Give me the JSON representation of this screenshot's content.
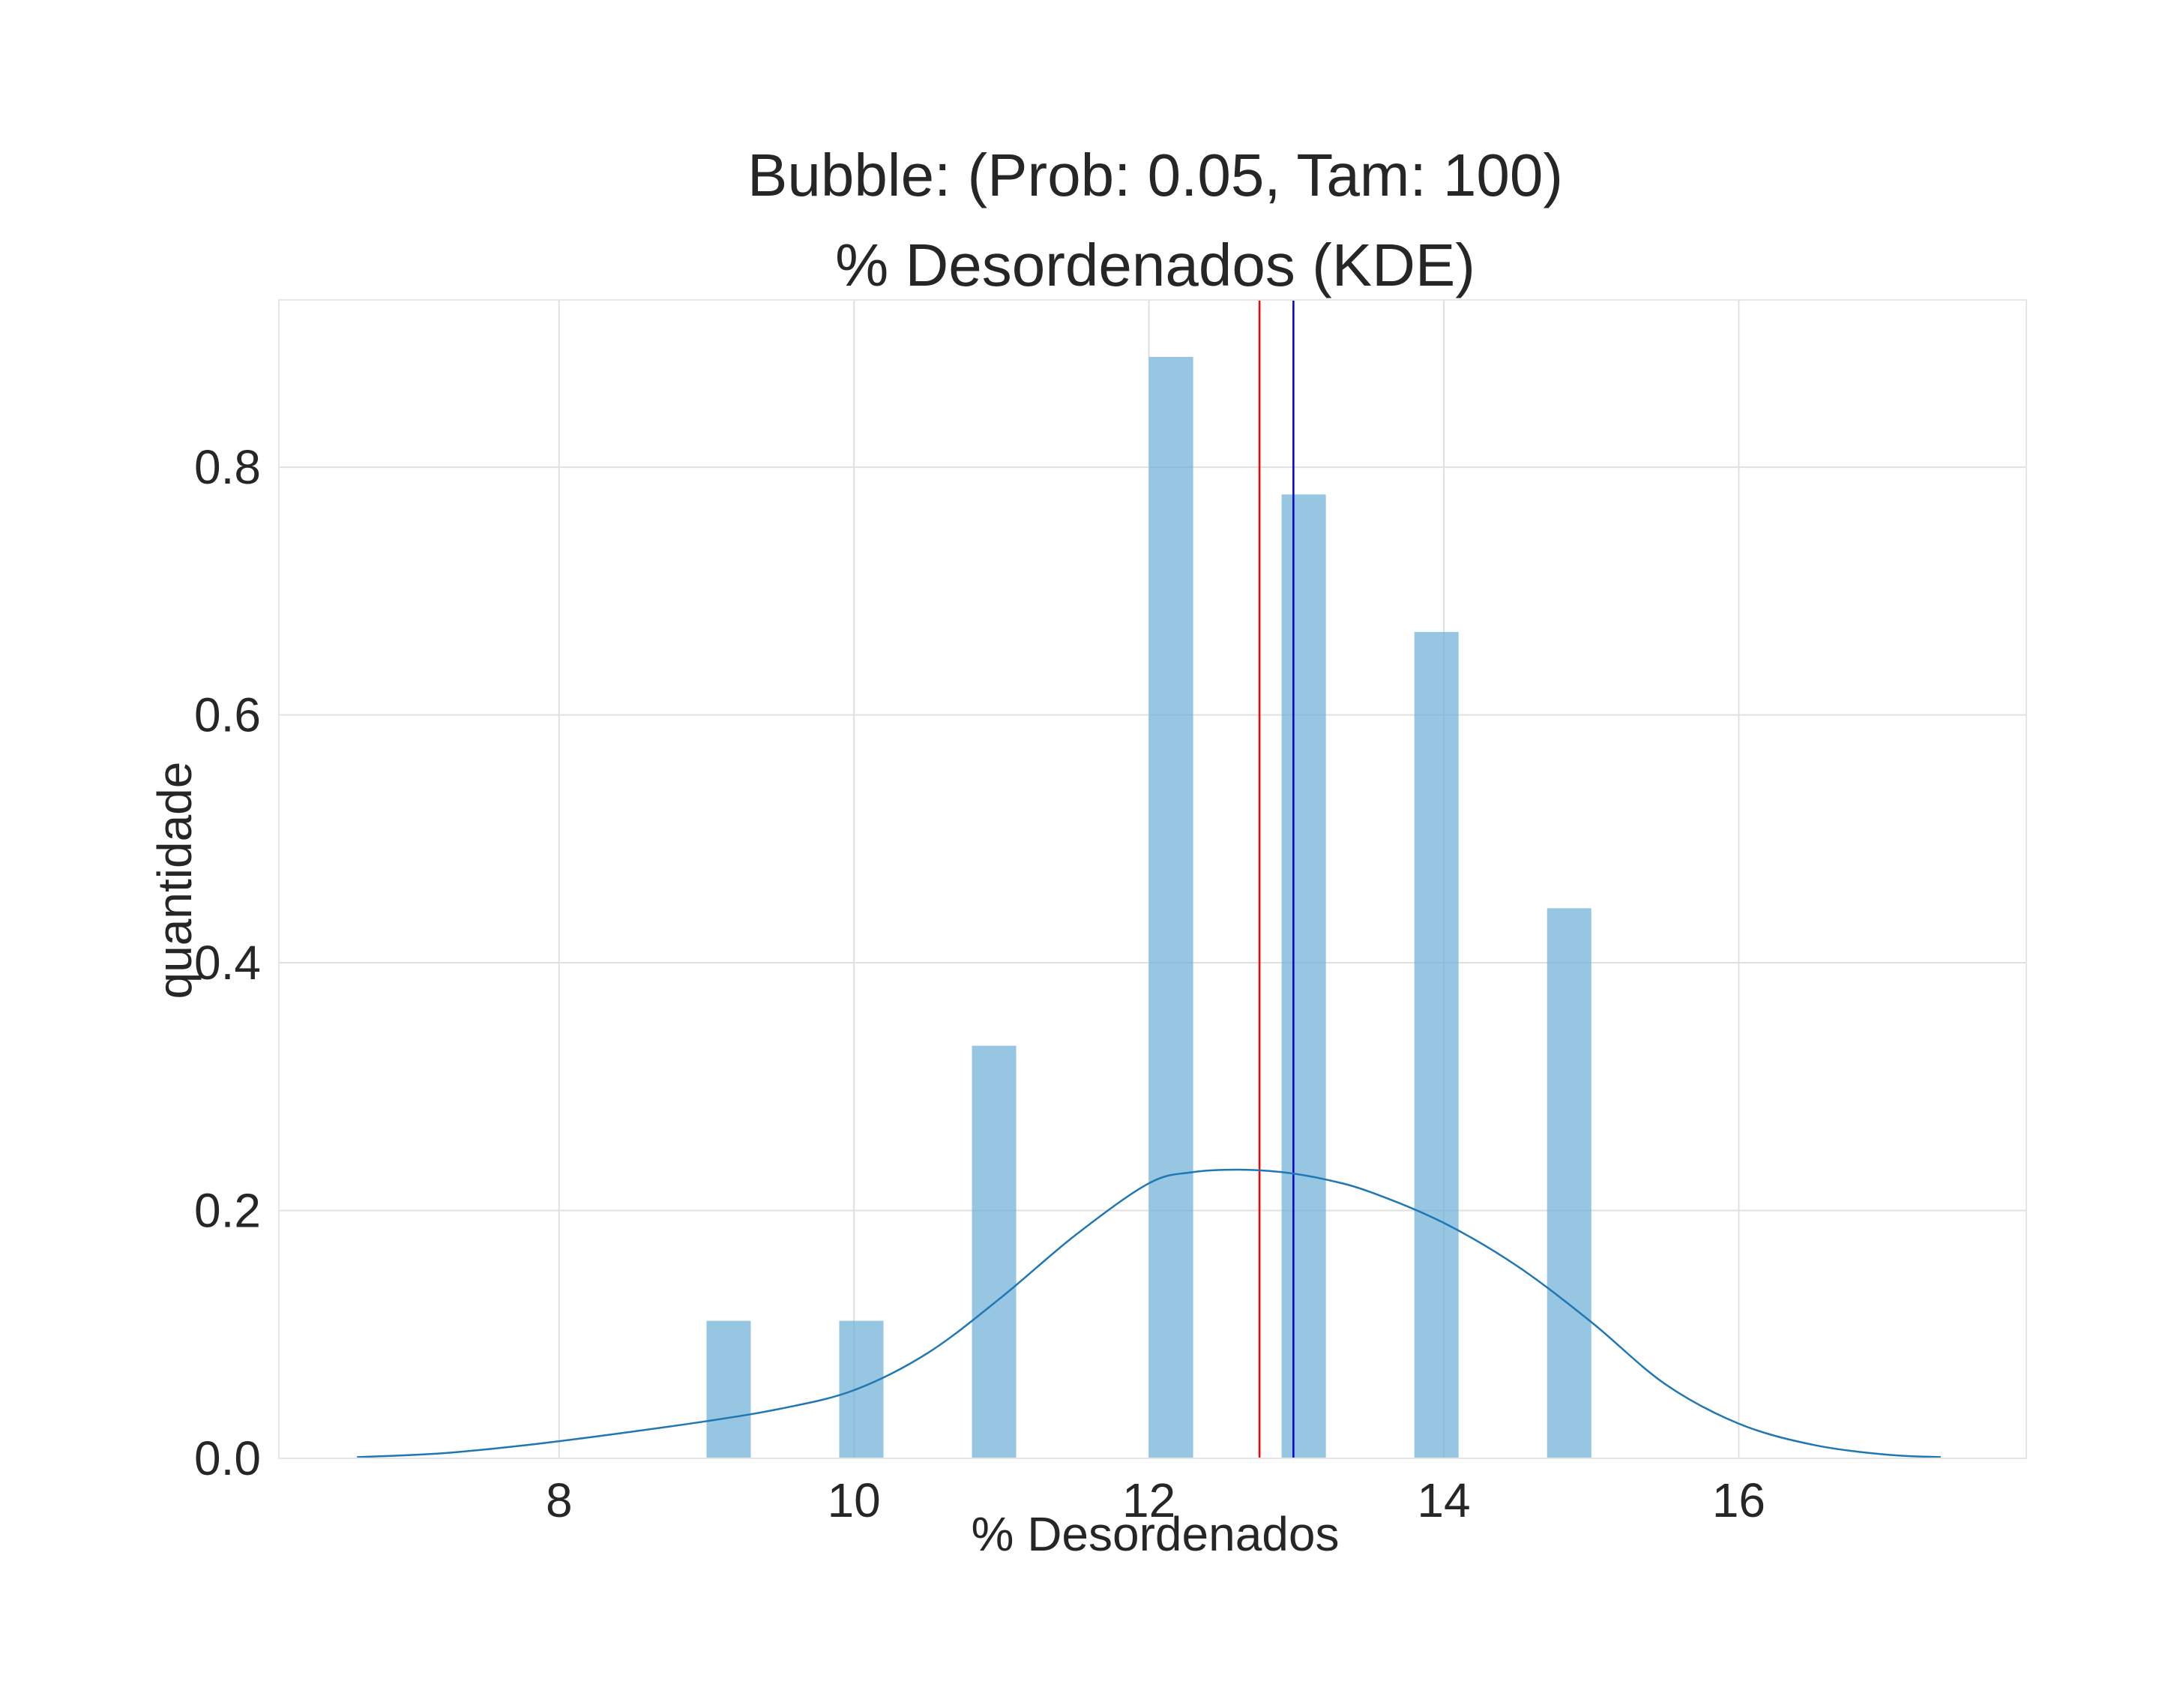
{
  "chart_data": {
    "type": "bar",
    "title": "Bubble: (Prob: 0.05, Tam: 100)",
    "subtitle": "% Desordenados (KDE)",
    "xlabel": "% Desordenados",
    "ylabel": "quantidade",
    "xlim": [
      6.1,
      17.95
    ],
    "ylim": [
      0.0,
      0.935
    ],
    "xticks": [
      8,
      10,
      12,
      14,
      16
    ],
    "yticks": [
      0.0,
      0.2,
      0.4,
      0.6,
      0.8
    ],
    "grid": true,
    "histogram": {
      "bar_width": 0.3,
      "bars": [
        {
          "x": 9.0,
          "value": 0.111
        },
        {
          "x": 9.9,
          "value": 0.111
        },
        {
          "x": 10.8,
          "value": 0.333
        },
        {
          "x": 12.0,
          "value": 0.889
        },
        {
          "x": 12.9,
          "value": 0.778
        },
        {
          "x": 13.8,
          "value": 0.667
        },
        {
          "x": 14.7,
          "value": 0.444
        }
      ],
      "color": "#6baed6"
    },
    "kde": {
      "color": "#1f77b4",
      "x": [
        6.63,
        7.2,
        7.8,
        8.4,
        9.0,
        9.5,
        10.0,
        10.5,
        11.0,
        11.5,
        12.0,
        12.3,
        12.6,
        12.9,
        13.2,
        13.5,
        14.0,
        14.5,
        15.0,
        15.5,
        16.0,
        16.5,
        17.0,
        17.37
      ],
      "y": [
        0.001,
        0.004,
        0.011,
        0.02,
        0.03,
        0.04,
        0.055,
        0.085,
        0.13,
        0.18,
        0.222,
        0.231,
        0.233,
        0.231,
        0.225,
        0.215,
        0.19,
        0.155,
        0.11,
        0.06,
        0.028,
        0.011,
        0.003,
        0.001
      ]
    },
    "vlines": [
      {
        "x": 12.75,
        "color": "#ff0000"
      },
      {
        "x": 12.98,
        "color": "#0000cc"
      }
    ]
  }
}
